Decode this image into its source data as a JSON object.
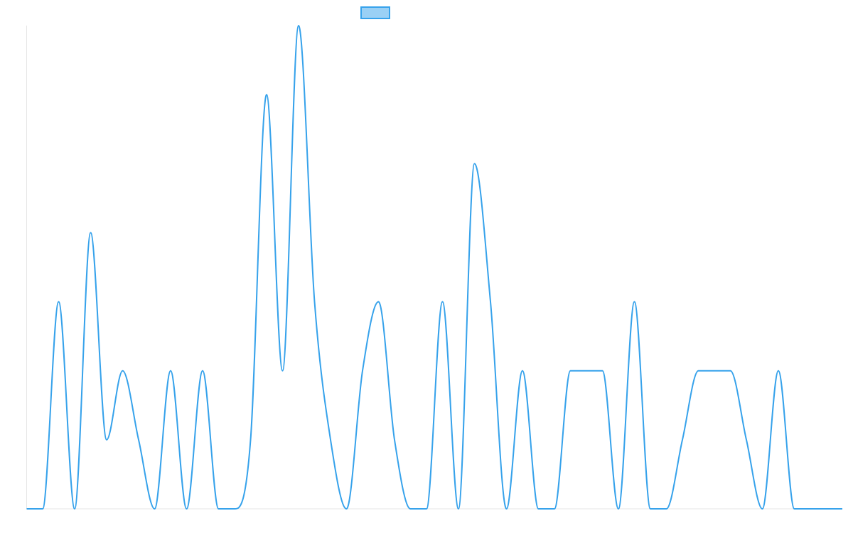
{
  "chart_data": {
    "type": "line",
    "x": [
      0,
      1,
      2,
      3,
      4,
      5,
      6,
      7,
      8,
      9,
      10,
      11,
      12,
      13,
      14,
      15,
      16,
      17,
      18,
      19,
      20,
      21,
      22,
      23,
      24,
      25,
      26,
      27,
      28,
      29,
      30,
      31,
      32,
      33,
      34,
      35,
      36,
      37,
      38,
      39,
      40,
      41,
      42,
      43,
      44,
      45,
      46,
      47,
      48,
      49,
      50,
      51
    ],
    "series": [
      {
        "name": "",
        "color": "#36a2eb",
        "fill": "#9ad0f5",
        "values": [
          0,
          0,
          3,
          0,
          4,
          1,
          2,
          1,
          0,
          2,
          0,
          2,
          0,
          0,
          1,
          6,
          2,
          7,
          3,
          1,
          0,
          2,
          3,
          1,
          0,
          0,
          3,
          0,
          5,
          3,
          0,
          2,
          0,
          0,
          2,
          2,
          2,
          0,
          3,
          0,
          0,
          1,
          2,
          2,
          2,
          1,
          0,
          2,
          0,
          0,
          0,
          0
        ]
      }
    ],
    "ylim": [
      0,
      7
    ],
    "grid": false,
    "legend": "top-center"
  }
}
